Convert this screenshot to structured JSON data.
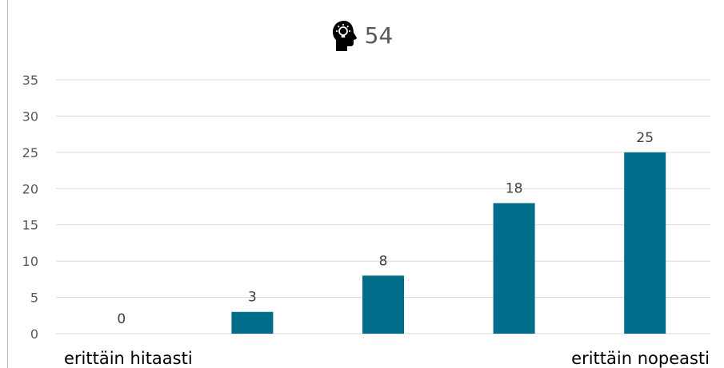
{
  "chart_data": {
    "type": "bar",
    "title": "54",
    "title_icon": "head-lightbulb-icon",
    "categories": [
      "erittäin hitaasti",
      "",
      "",
      "",
      "erittäin nopeasti"
    ],
    "values": [
      0,
      3,
      8,
      18,
      25
    ],
    "ylim": [
      0,
      35
    ],
    "yticks": [
      0,
      5,
      10,
      15,
      20,
      25,
      30,
      35
    ],
    "xlabel": "",
    "ylabel": "",
    "grid": true,
    "legend": "none",
    "bar_color": "#006d8a",
    "data_labels": true
  }
}
